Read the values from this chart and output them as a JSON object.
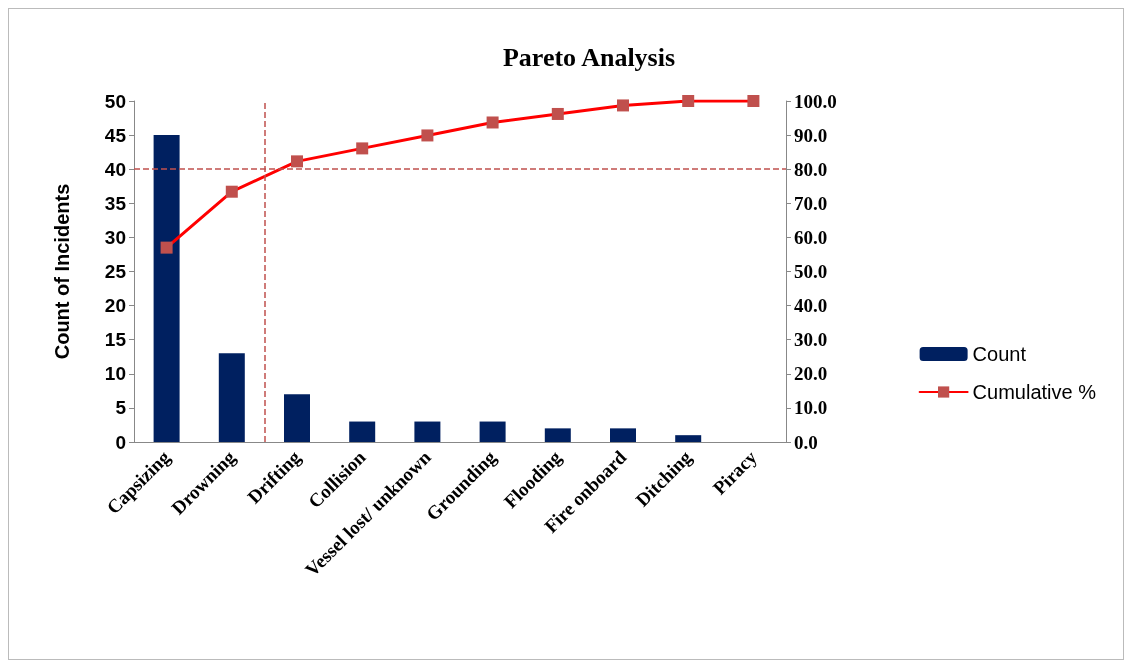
{
  "chart_data": {
    "type": "bar",
    "title": "Pareto Analysis",
    "ylabel": "Count of Incidents",
    "categories": [
      "Capsizing",
      "Drowning",
      "Drifting",
      "Collision",
      "Vessel lost/ unknown",
      "Grounding",
      "Flooding",
      "Fire onboard",
      "Ditching",
      "Piracy"
    ],
    "series": [
      {
        "name": "Count",
        "color": "#002060",
        "values": [
          45,
          13,
          7,
          3,
          3,
          3,
          2,
          2,
          1,
          0
        ]
      },
      {
        "name": "Cumulative %",
        "type": "line",
        "axis": "y2",
        "color": "#ff0000",
        "values": [
          57.0,
          73.4,
          82.3,
          86.1,
          89.9,
          93.7,
          96.2,
          98.7,
          100.0,
          100.0
        ]
      }
    ],
    "ylim": [
      0,
      50
    ],
    "yticks": [
      0,
      5,
      10,
      15,
      20,
      25,
      30,
      35,
      40,
      45,
      50
    ],
    "y2lim": [
      0,
      100
    ],
    "y2ticks": [
      {
        "value": 0,
        "label": "0.0"
      },
      {
        "value": 10,
        "label": "10.0"
      },
      {
        "value": 20,
        "label": "20.0"
      },
      {
        "value": 30,
        "label": "30.0"
      },
      {
        "value": 40,
        "label": "40.0"
      },
      {
        "value": 50,
        "label": "50.0"
      },
      {
        "value": 60,
        "label": "60.0"
      },
      {
        "value": 70,
        "label": "70.0"
      },
      {
        "value": 80,
        "label": "80.0"
      },
      {
        "value": 90,
        "label": "90.0"
      },
      {
        "value": 100,
        "label": "100.0"
      }
    ],
    "ref_lines": [
      {
        "axis": "y2",
        "value": 80,
        "color": "#c0504d",
        "line_style": "dashed"
      }
    ],
    "grid": false,
    "legend": "right",
    "marker": "square",
    "line_style": "solid"
  }
}
